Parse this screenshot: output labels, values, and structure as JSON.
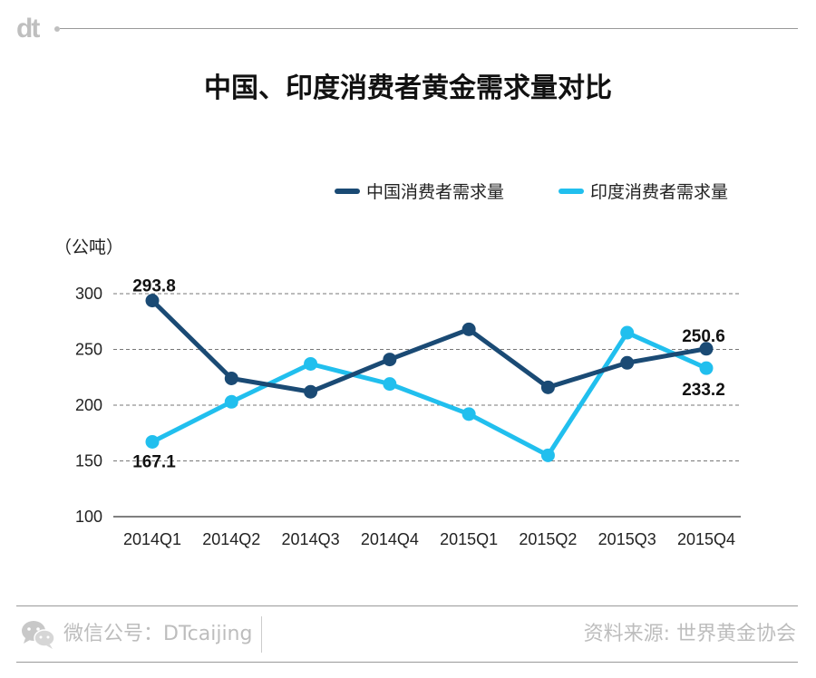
{
  "header": {
    "logo_text": "dt"
  },
  "chart_data": {
    "type": "line",
    "title": "中国、印度消费者黄金需求量对比",
    "unit_label": "（公吨）",
    "categories": [
      "2014Q1",
      "2014Q2",
      "2014Q3",
      "2014Q4",
      "2015Q1",
      "2015Q2",
      "2015Q3",
      "2015Q4"
    ],
    "series": [
      {
        "name": "中国消费者需求量",
        "color": "#1a4a74",
        "values": [
          293.8,
          224,
          212,
          241,
          268,
          216,
          238,
          250.6
        ]
      },
      {
        "name": "印度消费者需求量",
        "color": "#21bfee",
        "values": [
          167.1,
          203,
          237,
          219,
          192,
          155,
          265,
          233.2
        ]
      }
    ],
    "ylim": [
      100,
      300
    ],
    "yticks": [
      100,
      150,
      200,
      250,
      300
    ],
    "grid": true,
    "legend_position": "top-right",
    "data_labels": [
      {
        "series": 0,
        "index": 0,
        "text": "293.8"
      },
      {
        "series": 1,
        "index": 0,
        "text": "167.1"
      },
      {
        "series": 0,
        "index": 7,
        "text": "250.6"
      },
      {
        "series": 1,
        "index": 7,
        "text": "233.2"
      }
    ]
  },
  "footer": {
    "left_text": "微信公号：DTcaijing",
    "right_text": "资料来源: 世界黄金协会",
    "icon": "wechat-icon"
  }
}
